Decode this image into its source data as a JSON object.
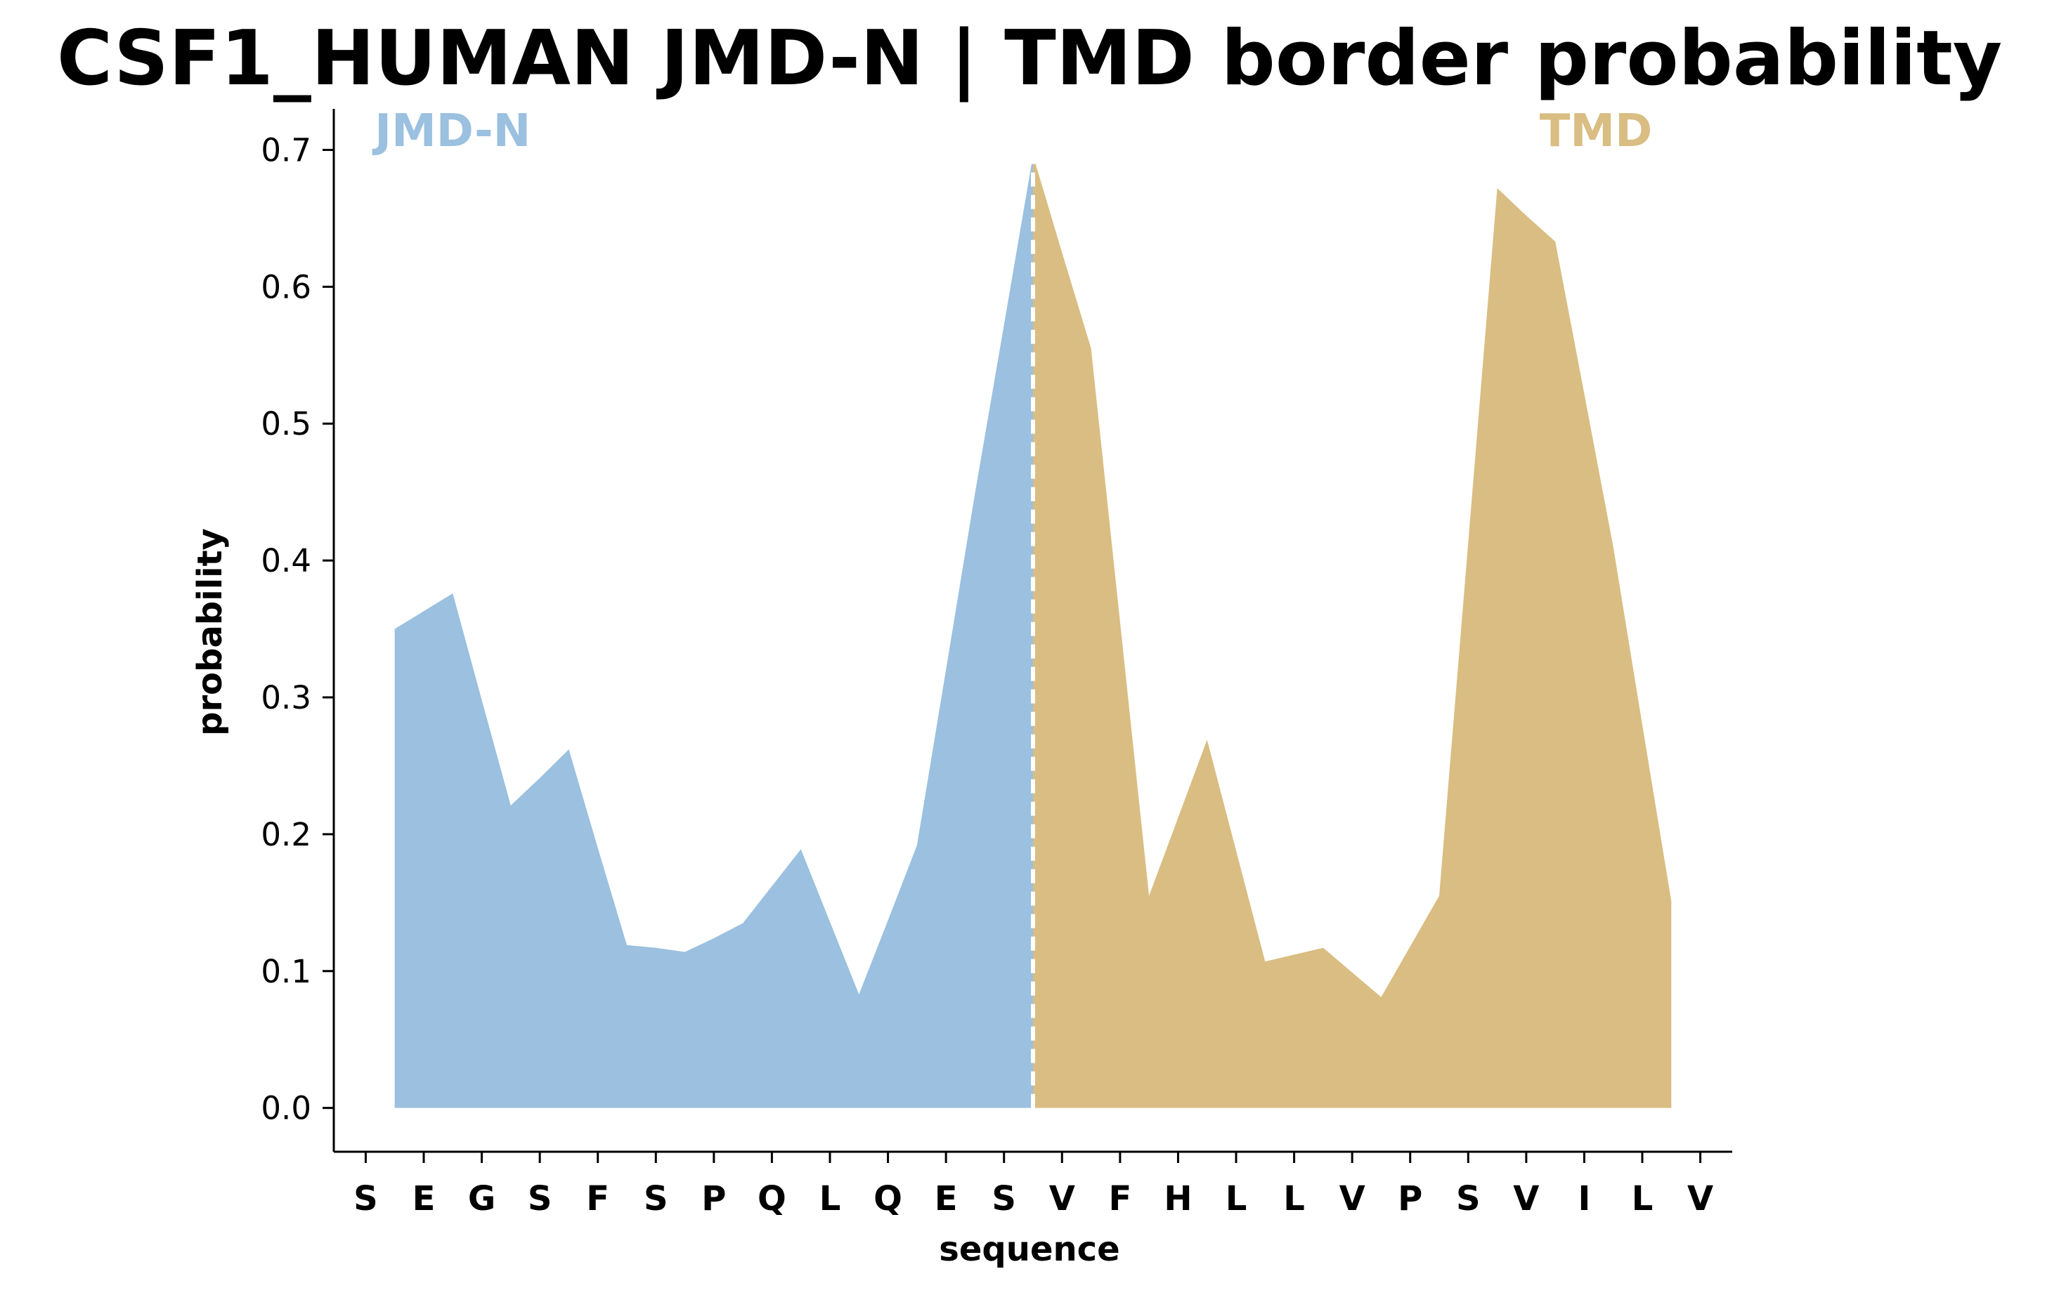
{
  "chart_data": {
    "type": "area",
    "title": "CSF1_HUMAN JMD-N | TMD border probability",
    "xlabel": "sequence",
    "ylabel": "probability",
    "ylim": [
      -0.032,
      0.73
    ],
    "yticks": [
      "0.0",
      "0.1",
      "0.2",
      "0.3",
      "0.4",
      "0.5",
      "0.6",
      "0.7"
    ],
    "sequence": [
      "S",
      "E",
      "G",
      "S",
      "F",
      "S",
      "P",
      "Q",
      "L",
      "Q",
      "E",
      "S",
      "V",
      "F",
      "H",
      "L",
      "L",
      "V",
      "P",
      "S",
      "V",
      "I",
      "L",
      "V"
    ],
    "border_x": 11.5,
    "series": [
      {
        "name": "JMD-N",
        "color": "#9bc0e0",
        "x": [
          0.5,
          1.0,
          1.5,
          2.0,
          2.5,
          3.0,
          3.5,
          4.0,
          4.5,
          5.0,
          5.5,
          6.0,
          6.5,
          7.0,
          7.5,
          8.0,
          8.5,
          9.0,
          9.5,
          10.0,
          10.5,
          11.0,
          11.5
        ],
        "values": [
          0.35,
          0.363,
          0.376,
          0.298,
          0.221,
          0.241,
          0.262,
          0.19,
          0.119,
          0.117,
          0.114,
          0.124,
          0.135,
          0.162,
          0.189,
          0.136,
          0.083,
          0.137,
          0.192,
          0.32,
          0.449,
          0.572,
          0.696
        ]
      },
      {
        "name": "TMD",
        "color": "#d9bd82",
        "x": [
          11.5,
          12.0,
          12.5,
          13.0,
          13.5,
          14.0,
          14.5,
          15.0,
          15.5,
          16.0,
          16.5,
          17.0,
          17.5,
          18.0,
          18.5,
          19.0,
          19.5,
          20.0,
          20.5,
          21.0,
          21.5,
          22.0,
          22.5
        ],
        "values": [
          0.696,
          0.625,
          0.555,
          0.355,
          0.155,
          0.212,
          0.269,
          0.188,
          0.107,
          0.112,
          0.117,
          0.099,
          0.081,
          0.118,
          0.155,
          0.413,
          0.672,
          0.652,
          0.633,
          0.522,
          0.41,
          0.28,
          0.151
        ]
      }
    ],
    "grid": false,
    "legend": "none"
  }
}
